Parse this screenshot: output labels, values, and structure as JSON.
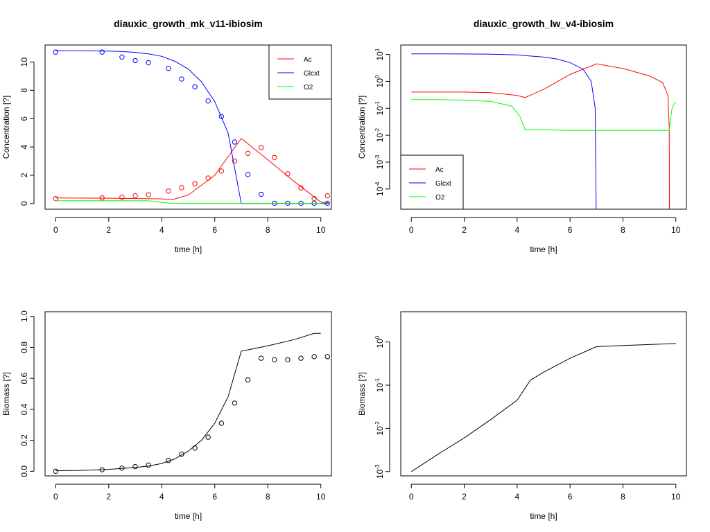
{
  "chart_data": [
    {
      "type": "line",
      "title": "diauxic_growth_mk_v11-ibiosim",
      "xlabel": "time [h]",
      "ylabel": "Concentration [?]",
      "xlim": [
        -0.4,
        10.4
      ],
      "ylim": [
        -0.4,
        11.2
      ],
      "log_y": false,
      "x_ticks": [
        "0",
        "2",
        "4",
        "6",
        "8",
        "10"
      ],
      "y_ticks": [
        "0",
        "2",
        "4",
        "6",
        "8",
        "10"
      ],
      "legend": {
        "position": "top-right",
        "entries": [
          "Ac",
          "Glcxt",
          "O2"
        ]
      },
      "series": [
        {
          "name": "Ac",
          "color": "#ff0000",
          "line": {
            "x": [
              0,
              2,
              4,
              4.4,
              5,
              6,
              7,
              8,
              9,
              10,
              10.3
            ],
            "y": [
              0.4,
              0.38,
              0.33,
              0.28,
              0.6,
              2.0,
              4.6,
              3.1,
              1.55,
              0.1,
              0.05
            ]
          },
          "points": {
            "x": [
              0,
              1.75,
              2.5,
              3,
              3.5,
              4.25,
              4.75,
              5.25,
              5.75,
              6.25,
              6.75,
              7.25,
              7.75,
              8.25,
              8.75,
              9.25,
              9.75,
              10.25
            ],
            "y": [
              0.35,
              0.4,
              0.45,
              0.55,
              0.62,
              0.88,
              1.12,
              1.4,
              1.8,
              2.3,
              3.0,
              3.55,
              3.95,
              3.25,
              2.1,
              1.1,
              0.35,
              0.55
            ]
          }
        },
        {
          "name": "Glcxt",
          "color": "#0000ff",
          "line": {
            "x": [
              0,
              1,
              2,
              2.5,
              3,
              3.5,
              4,
              4.5,
              5,
              5.5,
              6,
              6.5,
              7,
              7.5,
              8,
              9,
              10,
              10.3
            ],
            "y": [
              10.8,
              10.79,
              10.77,
              10.74,
              10.68,
              10.58,
              10.4,
              10.05,
              9.5,
              8.6,
              7.2,
              5.0,
              0.0,
              0.0,
              0.0,
              0.0,
              0.0,
              0.0
            ]
          },
          "points": {
            "x": [
              0,
              1.75,
              2.5,
              3,
              3.5,
              4.25,
              4.75,
              5.25,
              5.75,
              6.25,
              6.75,
              7.25,
              7.75,
              8.25,
              8.75,
              9.25,
              9.75,
              10.25
            ],
            "y": [
              10.7,
              10.7,
              10.35,
              10.1,
              9.95,
              9.55,
              8.8,
              8.25,
              7.25,
              6.15,
              4.35,
              2.05,
              0.65,
              0.02,
              0.02,
              0.02,
              0.02,
              0.02
            ]
          }
        },
        {
          "name": "O2",
          "color": "#00ff00",
          "line": {
            "x": [
              0,
              2,
              3.5,
              4.3,
              5,
              6,
              7,
              8,
              9,
              10,
              10.3
            ],
            "y": [
              0.2,
              0.2,
              0.19,
              0.02,
              0.015,
              0.015,
              0.015,
              0.015,
              0.015,
              0.015,
              0.15
            ]
          },
          "points": null
        }
      ]
    },
    {
      "type": "line",
      "title": "diauxic_growth_lw_v4-ibiosim",
      "xlabel": "time [h]",
      "ylabel": "Concentration [?]",
      "xlim": [
        -0.4,
        10.4
      ],
      "ylim_log10": [
        -4.75,
        1.35
      ],
      "log_y": true,
      "x_ticks": [
        "0",
        "2",
        "4",
        "6",
        "8",
        "10"
      ],
      "y_ticks_exponents": [
        -4,
        -3,
        -2,
        -1,
        0,
        1
      ],
      "y_tick_base": "10",
      "legend": {
        "position": "bottom-left",
        "entries": [
          "Ac",
          "Glcxt",
          "O2"
        ]
      },
      "series": [
        {
          "name": "Ac",
          "color": "#ff0000",
          "line": {
            "x": [
              0,
              2,
              3,
              4,
              4.3,
              5,
              6,
              7,
              8,
              9,
              9.5,
              9.7,
              9.75,
              9.76
            ],
            "y": [
              0.4,
              0.4,
              0.38,
              0.3,
              0.25,
              0.5,
              1.8,
              4.5,
              3.0,
              1.6,
              0.9,
              0.3,
              0.02,
              1e-06
            ]
          }
        },
        {
          "name": "Glcxt",
          "color": "#0000ff",
          "line": {
            "x": [
              0,
              1,
              2,
              3,
              4,
              5,
              5.5,
              6,
              6.5,
              6.8,
              6.95,
              7.0
            ],
            "y": [
              10.5,
              10.5,
              10.4,
              10.2,
              9.6,
              8.0,
              6.8,
              5.0,
              2.8,
              1.0,
              0.1,
              1e-06
            ]
          }
        },
        {
          "name": "O2",
          "color": "#00ff00",
          "line": {
            "x": [
              0,
              1,
              2,
              3,
              3.8,
              4.1,
              4.3,
              4.5,
              5,
              6,
              7,
              8,
              9,
              9.75,
              9.8,
              9.85,
              9.9,
              10.0
            ],
            "y": [
              0.21,
              0.21,
              0.2,
              0.18,
              0.12,
              0.05,
              0.016,
              0.016,
              0.016,
              0.015,
              0.015,
              0.015,
              0.015,
              0.015,
              0.04,
              0.09,
              0.13,
              0.17
            ]
          }
        }
      ]
    },
    {
      "type": "line",
      "title": "",
      "xlabel": "time [h]",
      "ylabel": "Biomass [?]",
      "xlim": [
        -0.4,
        10.4
      ],
      "ylim": [
        -0.03,
        1.03
      ],
      "log_y": false,
      "x_ticks": [
        "0",
        "2",
        "4",
        "6",
        "8",
        "10"
      ],
      "y_ticks": [
        "0.0",
        "0.2",
        "0.4",
        "0.6",
        "0.8",
        "1.0"
      ],
      "series": [
        {
          "name": "",
          "color": "#000000",
          "line": {
            "x": [
              0,
              1,
              2,
              3,
              3.5,
              4,
              4.5,
              5,
              5.5,
              6,
              6.5,
              7,
              8,
              9,
              9.75,
              10.0
            ],
            "y": [
              0.003,
              0.006,
              0.012,
              0.024,
              0.034,
              0.05,
              0.08,
              0.13,
              0.2,
              0.31,
              0.48,
              0.775,
              0.81,
              0.85,
              0.89,
              0.89
            ]
          },
          "points": {
            "x": [
              0,
              1.75,
              2.5,
              3,
              3.5,
              4.25,
              4.75,
              5.25,
              5.75,
              6.25,
              6.75,
              7.25,
              7.75,
              8.25,
              8.75,
              9.25,
              9.75,
              10.25
            ],
            "y": [
              0.0,
              0.01,
              0.02,
              0.03,
              0.04,
              0.07,
              0.11,
              0.15,
              0.22,
              0.31,
              0.44,
              0.59,
              0.73,
              0.72,
              0.72,
              0.73,
              0.74,
              0.74
            ]
          }
        }
      ]
    },
    {
      "type": "line",
      "title": "",
      "xlabel": "time [h]",
      "ylabel": "Biomass [?]",
      "xlim": [
        -0.4,
        10.4
      ],
      "ylim_log10": [
        -3.1,
        0.7
      ],
      "log_y": true,
      "x_ticks": [
        "0",
        "2",
        "4",
        "6",
        "8",
        "10"
      ],
      "y_ticks_exponents": [
        -3,
        -2,
        -1,
        0
      ],
      "y_tick_base": "10",
      "series": [
        {
          "name": "",
          "color": "#000000",
          "line": {
            "x": [
              0,
              1,
              2,
              3,
              4,
              4.5,
              5,
              6,
              7,
              8,
              9,
              10
            ],
            "y": [
              0.001,
              0.0025,
              0.006,
              0.016,
              0.045,
              0.13,
              0.2,
              0.42,
              0.78,
              0.83,
              0.87,
              0.92
            ]
          }
        }
      ]
    }
  ]
}
